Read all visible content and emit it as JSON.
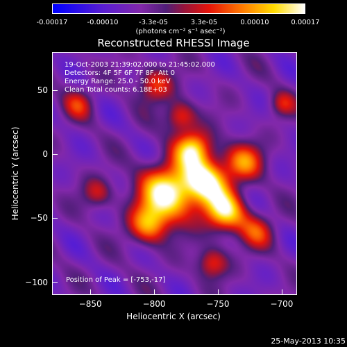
{
  "colorbar": {
    "ticks": [
      "-0.00017",
      "-0.00010",
      "-3.3e-05",
      "3.3e-05",
      "0.00010",
      "0.00017"
    ],
    "unit_label": "(photons cm⁻² s⁻¹ asec⁻²)"
  },
  "chart_data": {
    "type": "heatmap",
    "title": "Reconstructed RHESSI Image",
    "xlabel": "Heliocentric X (arcsec)",
    "ylabel": "Heliocentric Y (arcsec)",
    "xlim": [
      -880,
      -688
    ],
    "ylim": [
      -110,
      80
    ],
    "x_ticks": [
      "-850",
      "-800",
      "-750",
      "-700"
    ],
    "y_ticks": [
      "50",
      "0",
      "-50",
      "-100"
    ],
    "colorbar_range": [
      -0.00017,
      0.00017
    ],
    "colormap": "blue-purple-red-yellow-white",
    "peak": [
      -753,
      -17
    ],
    "annotations": [
      "19-Oct-2003 21:39:02.000 to 21:45:02.000",
      "Detectors: 4F 5F 6F 7F 8F, Att 0",
      "Energy Range: 25.0 - 50.0 keV",
      "Clean    Total counts: 6.18E+03",
      "Position of Peak = [-753,-17]"
    ]
  },
  "footer": {
    "timestamp": "25-May-2013 10:35"
  }
}
